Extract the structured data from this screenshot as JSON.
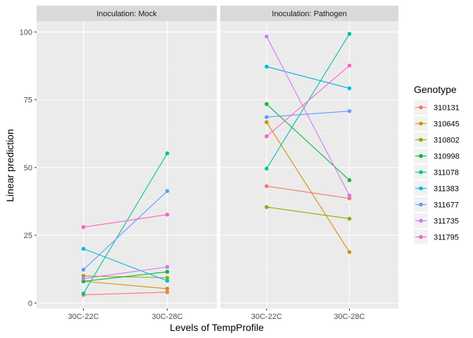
{
  "chart_data": {
    "type": "line",
    "xlabel": "Levels of TempProfile",
    "ylabel": "Linear prediction",
    "categories": [
      "30C-22C",
      "30C-28C"
    ],
    "ylim": [
      -2,
      104
    ],
    "yticks": [
      0,
      25,
      50,
      75,
      100
    ],
    "grid": true,
    "legend_title": "Genotype",
    "legend_position": "right",
    "panels": [
      {
        "label": "Inoculation: Mock",
        "series": [
          {
            "name": "310131",
            "color": "#F8766D",
            "values": [
              3.0,
              4.0
            ]
          },
          {
            "name": "310645",
            "color": "#D39200",
            "values": [
              8.0,
              5.3
            ]
          },
          {
            "name": "310802",
            "color": "#93AA00",
            "values": [
              10.0,
              9.3
            ]
          },
          {
            "name": "310998",
            "color": "#00BA38",
            "values": [
              8.0,
              11.5
            ]
          },
          {
            "name": "311078",
            "color": "#00C19F",
            "values": [
              3.5,
              55.2
            ]
          },
          {
            "name": "311383",
            "color": "#00B9E3",
            "values": [
              20.0,
              8.2
            ]
          },
          {
            "name": "311677",
            "color": "#619CFF",
            "values": [
              12.3,
              41.3
            ]
          },
          {
            "name": "311735",
            "color": "#DB72FB",
            "values": [
              9.0,
              13.3
            ]
          },
          {
            "name": "311795",
            "color": "#FF61C3",
            "values": [
              28.0,
              32.6
            ]
          }
        ]
      },
      {
        "label": "Inoculation: Pathogen",
        "series": [
          {
            "name": "310131",
            "color": "#F8766D",
            "values": [
              43.1,
              38.6
            ]
          },
          {
            "name": "310645",
            "color": "#D39200",
            "values": [
              66.7,
              18.8
            ]
          },
          {
            "name": "310802",
            "color": "#93AA00",
            "values": [
              35.4,
              31.1
            ]
          },
          {
            "name": "310998",
            "color": "#00BA38",
            "values": [
              73.4,
              45.3
            ]
          },
          {
            "name": "311078",
            "color": "#00C19F",
            "values": [
              49.6,
              99.3
            ]
          },
          {
            "name": "311383",
            "color": "#00B9E3",
            "values": [
              87.2,
              79.2
            ]
          },
          {
            "name": "311677",
            "color": "#619CFF",
            "values": [
              68.6,
              70.8
            ]
          },
          {
            "name": "311735",
            "color": "#DB72FB",
            "values": [
              98.3,
              39.7
            ]
          },
          {
            "name": "311795",
            "color": "#FF61C3",
            "values": [
              61.5,
              87.6
            ]
          }
        ]
      }
    ]
  }
}
